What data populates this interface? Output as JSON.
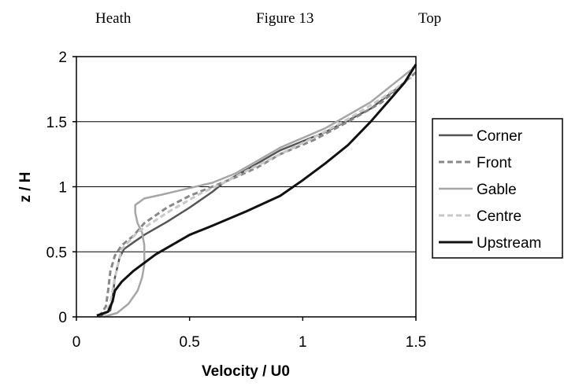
{
  "header": {
    "left": "Heath",
    "center": "Figure 13",
    "right": "Top"
  },
  "chart_data": {
    "type": "line",
    "title": "",
    "xlabel": "Velocity / U0",
    "ylabel": "z / H",
    "xlim": [
      0,
      1.5
    ],
    "ylim": [
      0,
      2
    ],
    "xticks": [
      "0",
      "0.5",
      "1",
      "1.5"
    ],
    "yticks": [
      "0",
      "0.5",
      "1",
      "1.5",
      "2"
    ],
    "grid": "horizontal",
    "legend_position": "right",
    "series": [
      {
        "name": "Corner",
        "color": "#555555",
        "dash": "solid",
        "width": 2.5,
        "points": [
          [
            0.1,
            0
          ],
          [
            0.15,
            0.05
          ],
          [
            0.16,
            0.15
          ],
          [
            0.17,
            0.3
          ],
          [
            0.19,
            0.45
          ],
          [
            0.21,
            0.52
          ],
          [
            0.25,
            0.57
          ],
          [
            0.3,
            0.63
          ],
          [
            0.4,
            0.73
          ],
          [
            0.5,
            0.84
          ],
          [
            0.6,
            0.96
          ],
          [
            0.65,
            1.03
          ],
          [
            0.75,
            1.13
          ],
          [
            0.9,
            1.28
          ],
          [
            1.1,
            1.42
          ],
          [
            1.3,
            1.6
          ],
          [
            1.45,
            1.8
          ],
          [
            1.49,
            1.92
          ]
        ]
      },
      {
        "name": "Front",
        "color": "#888888",
        "dash": "dashed",
        "width": 3,
        "points": [
          [
            0.1,
            0
          ],
          [
            0.13,
            0.08
          ],
          [
            0.14,
            0.2
          ],
          [
            0.15,
            0.35
          ],
          [
            0.17,
            0.47
          ],
          [
            0.2,
            0.55
          ],
          [
            0.25,
            0.62
          ],
          [
            0.3,
            0.72
          ],
          [
            0.4,
            0.84
          ],
          [
            0.5,
            0.93
          ],
          [
            0.6,
            1.0
          ],
          [
            0.7,
            1.07
          ],
          [
            0.8,
            1.15
          ],
          [
            0.9,
            1.25
          ],
          [
            1.05,
            1.36
          ],
          [
            1.2,
            1.5
          ],
          [
            1.35,
            1.65
          ],
          [
            1.5,
            1.88
          ]
        ]
      },
      {
        "name": "Gable",
        "color": "#a6a6a6",
        "dash": "solid",
        "width": 2.5,
        "points": [
          [
            0.12,
            0
          ],
          [
            0.18,
            0.03
          ],
          [
            0.23,
            0.1
          ],
          [
            0.27,
            0.2
          ],
          [
            0.29,
            0.3
          ],
          [
            0.3,
            0.4
          ],
          [
            0.3,
            0.55
          ],
          [
            0.29,
            0.65
          ],
          [
            0.27,
            0.72
          ],
          [
            0.26,
            0.8
          ],
          [
            0.26,
            0.86
          ],
          [
            0.3,
            0.91
          ],
          [
            0.38,
            0.94
          ],
          [
            0.5,
            0.99
          ],
          [
            0.6,
            1.03
          ],
          [
            0.7,
            1.1
          ],
          [
            0.8,
            1.2
          ],
          [
            0.9,
            1.3
          ],
          [
            1.1,
            1.45
          ],
          [
            1.3,
            1.65
          ],
          [
            1.48,
            1.9
          ]
        ]
      },
      {
        "name": "Centre",
        "color": "#c8c8c8",
        "dash": "dashed",
        "width": 3,
        "points": [
          [
            0.12,
            0
          ],
          [
            0.15,
            0.1
          ],
          [
            0.17,
            0.3
          ],
          [
            0.2,
            0.52
          ],
          [
            0.27,
            0.65
          ],
          [
            0.4,
            0.8
          ],
          [
            0.55,
            0.95
          ],
          [
            0.65,
            1.03
          ],
          [
            0.75,
            1.12
          ],
          [
            0.9,
            1.25
          ],
          [
            1.05,
            1.38
          ],
          [
            1.2,
            1.52
          ],
          [
            1.35,
            1.68
          ],
          [
            1.48,
            1.84
          ]
        ]
      },
      {
        "name": "Upstream",
        "color": "#111111",
        "dash": "solid",
        "width": 3,
        "points": [
          [
            0.09,
            0.01
          ],
          [
            0.14,
            0.04
          ],
          [
            0.16,
            0.12
          ],
          [
            0.17,
            0.2
          ],
          [
            0.2,
            0.27
          ],
          [
            0.25,
            0.35
          ],
          [
            0.35,
            0.48
          ],
          [
            0.5,
            0.63
          ],
          [
            0.6,
            0.7
          ],
          [
            0.75,
            0.81
          ],
          [
            0.9,
            0.93
          ],
          [
            1.0,
            1.05
          ],
          [
            1.1,
            1.18
          ],
          [
            1.2,
            1.32
          ],
          [
            1.3,
            1.5
          ],
          [
            1.4,
            1.7
          ],
          [
            1.45,
            1.8
          ],
          [
            1.5,
            1.94
          ]
        ]
      }
    ]
  }
}
